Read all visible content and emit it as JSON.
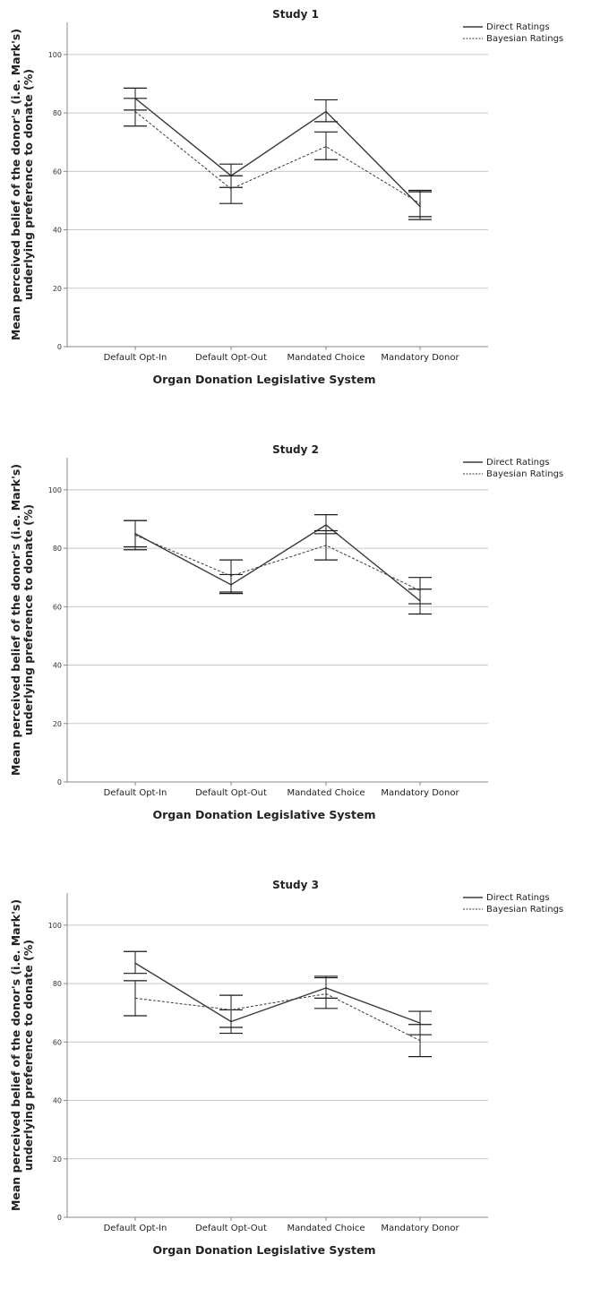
{
  "chart_data": [
    {
      "type": "line",
      "title": "Study 1",
      "xlabel": "Organ Donation Legislative System",
      "ylabel_lines": [
        "Mean perceived belief of the donor's (i.e. Mark's)",
        "underlying preference to donate (%)"
      ],
      "categories": [
        "Default Opt-In",
        "Default Opt-Out",
        "Mandated Choice",
        "Mandatory Donor"
      ],
      "yticks": [
        0,
        20,
        40,
        60,
        80,
        100
      ],
      "ylim": [
        0,
        111
      ],
      "grid": "horizontal",
      "legend_position": "top-right",
      "series": [
        {
          "name": "Direct Ratings",
          "style": "solid",
          "values": [
            85,
            58.5,
            80.5,
            48
          ],
          "error_low": [
            81,
            54.5,
            77,
            43.5
          ],
          "error_high": [
            88.5,
            62.5,
            84.5,
            53.5
          ]
        },
        {
          "name": "Bayesian Ratings",
          "style": "dashed",
          "values": [
            80.5,
            54,
            68.5,
            49
          ],
          "error_low": [
            75.5,
            49,
            64,
            44.5
          ],
          "error_high": [
            85,
            58.5,
            73.5,
            53
          ]
        }
      ]
    },
    {
      "type": "line",
      "title": "Study 2",
      "xlabel": "Organ Donation Legislative System",
      "ylabel_lines": [
        "Mean perceived belief of the donor's (i.e. Mark's)",
        "underlying preference to donate (%)"
      ],
      "categories": [
        "Default Opt-In",
        "Default Opt-Out",
        "Mandated Choice",
        "Mandatory Donor"
      ],
      "yticks": [
        0,
        20,
        40,
        60,
        80,
        100
      ],
      "ylim": [
        0,
        111
      ],
      "grid": "horizontal",
      "legend_position": "top-right",
      "series": [
        {
          "name": "Direct Ratings",
          "style": "solid",
          "values": [
            85,
            67.5,
            88,
            62
          ],
          "error_low": [
            80.5,
            64.5,
            85,
            57.5
          ],
          "error_high": [
            89.5,
            71,
            91.5,
            66
          ]
        },
        {
          "name": "Bayesian Ratings",
          "style": "dashed",
          "values": [
            84.5,
            70.5,
            81,
            65.5
          ],
          "error_low": [
            79.5,
            65,
            76,
            61
          ],
          "error_high": [
            89.5,
            76,
            86,
            70
          ]
        }
      ]
    },
    {
      "type": "line",
      "title": "Study 3",
      "xlabel": "Organ Donation Legislative System",
      "ylabel_lines": [
        "Mean perceived belief of the donor's (i.e. Mark's)",
        "underlying preference to donate (%)"
      ],
      "categories": [
        "Default Opt-In",
        "Default Opt-Out",
        "Mandated Choice",
        "Mandatory Donor"
      ],
      "yticks": [
        0,
        20,
        40,
        60,
        80,
        100
      ],
      "ylim": [
        0,
        111
      ],
      "grid": "horizontal",
      "legend_position": "top-right",
      "series": [
        {
          "name": "Direct Ratings",
          "style": "solid",
          "values": [
            87,
            67,
            78.5,
            66.5
          ],
          "error_low": [
            83.5,
            63,
            75,
            62.5
          ],
          "error_high": [
            91,
            71,
            82.5,
            70.5
          ]
        },
        {
          "name": "Bayesian Ratings",
          "style": "dashed",
          "values": [
            75,
            71,
            76.5,
            60.5
          ],
          "error_low": [
            69,
            65,
            71.5,
            55
          ],
          "error_high": [
            81,
            76,
            82,
            66
          ]
        }
      ]
    }
  ],
  "colors": {
    "line": "#3a3a3a",
    "grid": "#c8c8c8",
    "axis": "#888888",
    "errorbar": "#1a1a1a"
  }
}
